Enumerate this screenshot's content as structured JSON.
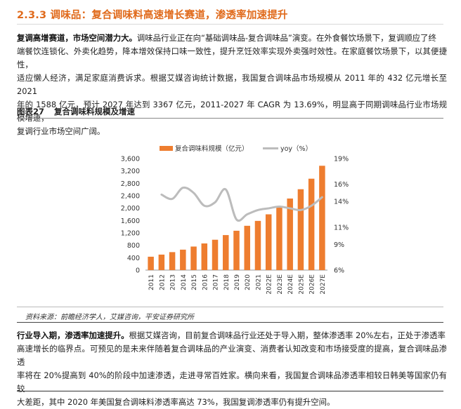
{
  "section": {
    "title": "2.3.3 调味品：复合调味料高速增长赛道，渗透率加速提升"
  },
  "para1": {
    "lead": "复调高增赛道，市场空间潜力大。",
    "lines": [
      "调味品行业正在向“基础调味品-复合调味品”演变。在外食餐饮场景下，复调顺应了终",
      "端餐饮连锁化、外卖化趋势，降本增效保持口味一致性，提升烹饪效率实现外卖强时效性。在家庭餐饮场景下，以其便捷性，",
      "适应懒人经济，满足家庭消费诉求。根据艾媒咨询统计数据，我国复合调味品市场规模从 2011 年的 432 亿元增长至 2021",
      "年的 1588 亿元，预计 2027 年达到 3367 亿元，2011-2027 年 CAGR 为 13.69%，明显高于同期调味品行业市场规模增速，",
      "复调行业市场空间广阔。"
    ]
  },
  "figure": {
    "number": "图表27",
    "title": "复合调味料规模及增速"
  },
  "source": "资料来源：前瞻经济学人，艾媒咨询，平安证券研究所",
  "para2": {
    "lead": "行业导入期，渗透率加速提升。",
    "lines": [
      "根据艾媒咨询，目前复合调味品行业还处于导入期，整体渗透率 20%左右，正处于渗透率",
      "高速增长的临界点。可预见的是未来伴随着复合调味品的产业演变、消费者认知改变和市场接受度的提高，复合调味品渗透",
      "率将在 20%提高到 40%的阶段中加速渗透，走进寻常百姓家。横向来看，我国复合调味品渗透率相较日韩美等国家仍有较",
      "大差距，其中 2020 年美国复合调味料渗透率高达 73%，我国复调渗透率仍有提升空间。"
    ]
  },
  "chart_data": {
    "type": "bar",
    "title": "",
    "categories": [
      "2011",
      "2012",
      "2013",
      "2014",
      "2015",
      "2016",
      "2017",
      "2018",
      "2019",
      "2020",
      "2021",
      "2022E",
      "2023E",
      "2024E",
      "2025E",
      "2026E",
      "2027E"
    ],
    "series": [
      {
        "name": "复合调味料规模（亿元）",
        "type": "bar",
        "axis": "left",
        "color": "#ee7d2f",
        "values": [
          432,
          500,
          580,
          660,
          760,
          860,
          980,
          1130,
          1270,
          1430,
          1588,
          1800,
          2040,
          2310,
          2610,
          2950,
          3367
        ]
      },
      {
        "name": "yoy（%）",
        "type": "line",
        "axis": "right",
        "color": "#bcbcbc",
        "values": [
          null,
          14.8,
          14.3,
          15.6,
          15.0,
          13.5,
          13.9,
          15.4,
          11.9,
          12.5,
          13.0,
          13.2,
          13.4,
          13.2,
          13.0,
          13.5,
          14.5
        ]
      }
    ],
    "left_axis": {
      "min": 0,
      "max": 3600,
      "step": 400,
      "ticks": [
        "0",
        "400",
        "800",
        "1,200",
        "1,600",
        "2,000",
        "2,400",
        "2,800",
        "3,200",
        "3,600"
      ]
    },
    "right_axis": {
      "min": 6,
      "max": 19,
      "ticks": [
        "6%",
        "9%",
        "11%",
        "14%",
        "16%",
        "19%"
      ],
      "tick_values": [
        6,
        9,
        11,
        14,
        16,
        19
      ]
    },
    "legend_position": "top",
    "grid": false
  }
}
